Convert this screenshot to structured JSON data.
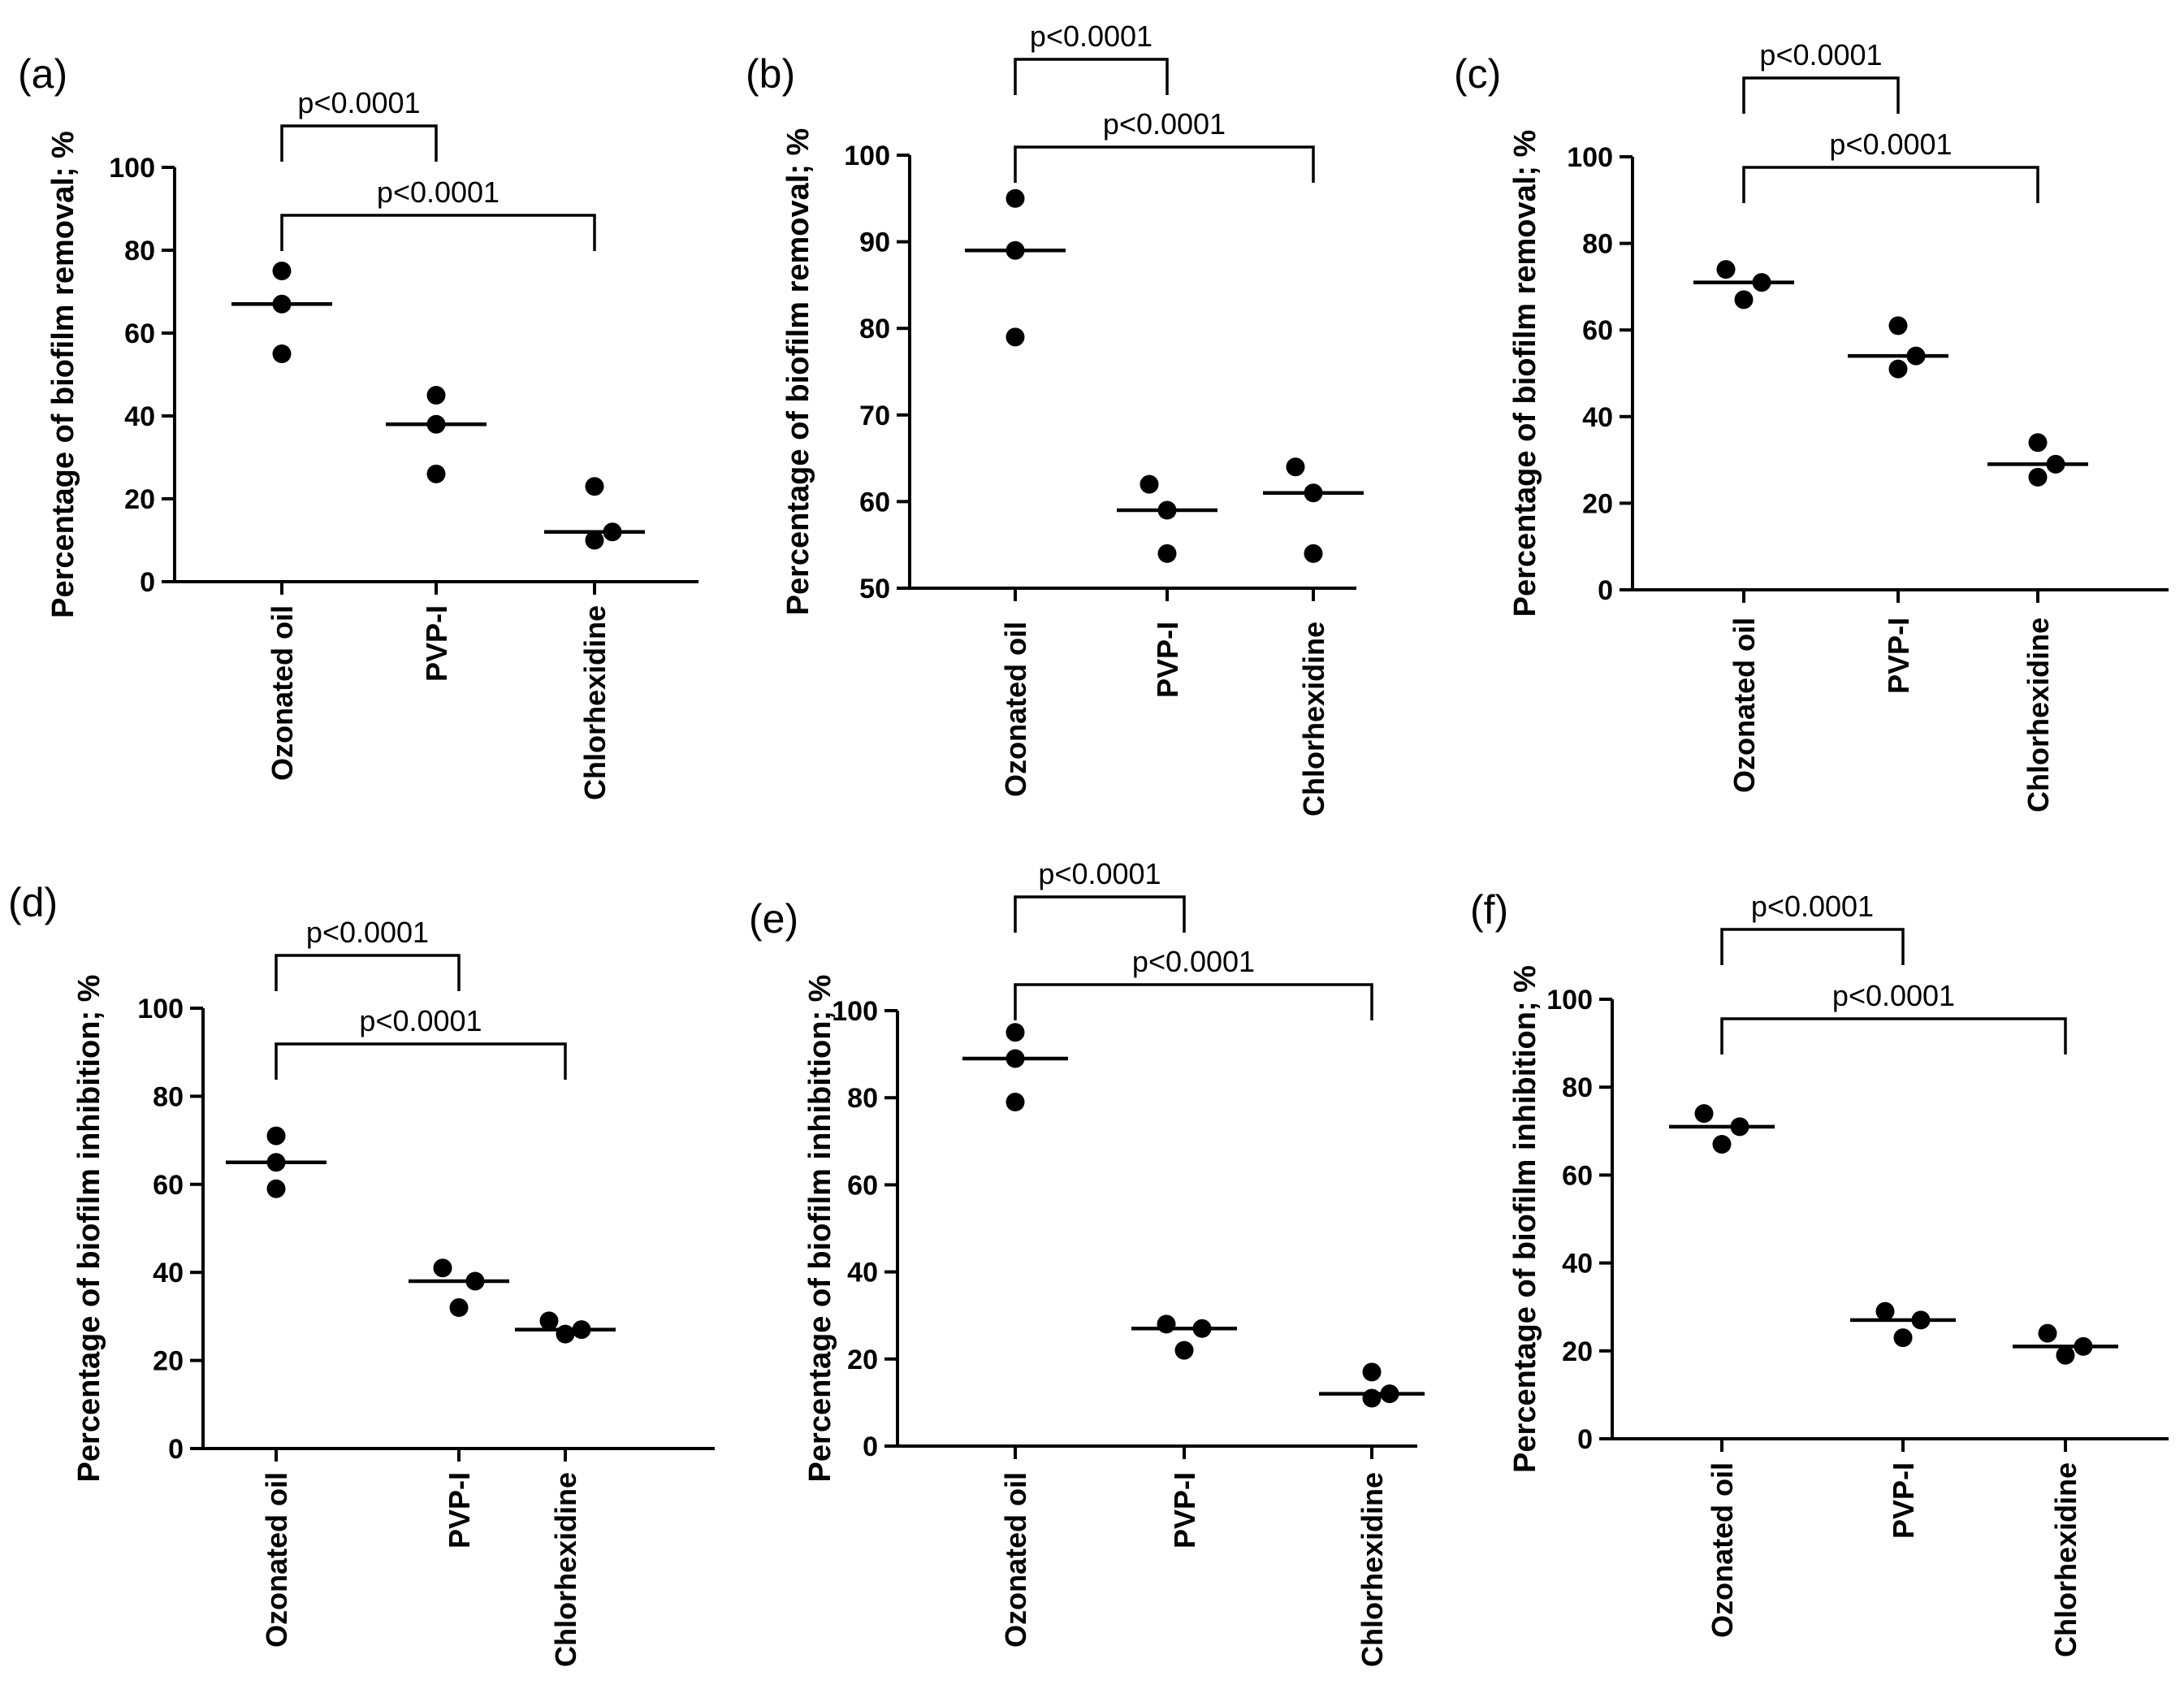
{
  "chart_data": [
    {
      "panel": "(a)",
      "type": "scatter",
      "ylabel": "Percentage of biofilm removal; %",
      "categories": [
        "Ozonated oil",
        "PVP-I",
        "Chlorhexidine"
      ],
      "ylim": [
        0,
        100
      ],
      "yticks": [
        0,
        20,
        40,
        60,
        80,
        100
      ],
      "points": [
        [
          75,
          67,
          55
        ],
        [
          45,
          38,
          26
        ],
        [
          23,
          10,
          12
        ]
      ],
      "medians": [
        67,
        38,
        12
      ],
      "comparisons": [
        {
          "from": "Ozonated oil",
          "to": "PVP-I",
          "label": "p<0.0001"
        },
        {
          "from": "Ozonated oil",
          "to": "Chlorhexidine",
          "label": "p<0.0001"
        }
      ]
    },
    {
      "panel": "(b)",
      "type": "scatter",
      "ylabel": "Percentage of biofilm removal; %",
      "categories": [
        "Ozonated oil",
        "PVP-I",
        "Chlorhexidine"
      ],
      "ylim": [
        50,
        100
      ],
      "yticks": [
        50,
        60,
        70,
        80,
        90,
        100
      ],
      "points": [
        [
          95,
          89,
          79
        ],
        [
          62,
          59,
          54
        ],
        [
          64,
          61,
          54
        ]
      ],
      "medians": [
        89,
        59,
        61
      ],
      "comparisons": [
        {
          "from": "Ozonated oil",
          "to": "PVP-I",
          "label": "p<0.0001"
        },
        {
          "from": "Ozonated oil",
          "to": "Chlorhexidine",
          "label": "p<0.0001"
        }
      ]
    },
    {
      "panel": "(c)",
      "type": "scatter",
      "ylabel": "Percentage of biofilm removal; %",
      "categories": [
        "Ozonated oil",
        "PVP-I",
        "Chlorhexidine"
      ],
      "ylim": [
        0,
        100
      ],
      "yticks": [
        0,
        20,
        40,
        60,
        80,
        100
      ],
      "points": [
        [
          74,
          67,
          71
        ],
        [
          61,
          51,
          54
        ],
        [
          34,
          26,
          29
        ]
      ],
      "medians": [
        71,
        54,
        29
      ],
      "comparisons": [
        {
          "from": "Ozonated oil",
          "to": "PVP-I",
          "label": "p<0.0001"
        },
        {
          "from": "Ozonated oil",
          "to": "Chlorhexidine",
          "label": "p<0.0001"
        }
      ]
    },
    {
      "panel": "(d)",
      "type": "scatter",
      "ylabel": "Percentage of biofilm inhibition; %",
      "categories": [
        "Ozonated oil",
        "PVP-I",
        "Chlorhexidine"
      ],
      "ylim": [
        0,
        100
      ],
      "yticks": [
        0,
        20,
        40,
        60,
        80,
        100
      ],
      "points": [
        [
          71,
          59,
          65
        ],
        [
          41,
          32,
          38
        ],
        [
          29,
          26,
          27
        ]
      ],
      "medians": [
        65,
        38,
        27
      ],
      "comparisons": [
        {
          "from": "Ozonated oil",
          "to": "PVP-I",
          "label": "p<0.0001"
        },
        {
          "from": "Ozonated oil",
          "to": "Chlorhexidine",
          "label": "p<0.0001"
        }
      ]
    },
    {
      "panel": "(e)",
      "type": "scatter",
      "ylabel": "Percentage of biofilm inhibition; %",
      "categories": [
        "Ozonated oil",
        "PVP-I",
        "Chlorhexidine"
      ],
      "ylim": [
        0,
        100
      ],
      "yticks": [
        0,
        20,
        40,
        60,
        80,
        100
      ],
      "points": [
        [
          95,
          79,
          89
        ],
        [
          28,
          22,
          27
        ],
        [
          17,
          11,
          12
        ]
      ],
      "medians": [
        89,
        27,
        12
      ],
      "comparisons": [
        {
          "from": "Ozonated oil",
          "to": "PVP-I",
          "label": "p<0.0001"
        },
        {
          "from": "Ozonated oil",
          "to": "Chlorhexidine",
          "label": "p<0.0001"
        }
      ]
    },
    {
      "panel": "(f)",
      "type": "scatter",
      "ylabel": "Percentage of biofilm inhibition; %",
      "categories": [
        "Ozonated oil",
        "PVP-I",
        "Chlorhexidine"
      ],
      "ylim": [
        0,
        100
      ],
      "yticks": [
        0,
        20,
        40,
        60,
        80,
        100
      ],
      "points": [
        [
          74,
          67,
          71
        ],
        [
          29,
          23,
          27
        ],
        [
          24,
          19,
          21
        ]
      ],
      "medians": [
        71,
        27,
        21
      ],
      "comparisons": [
        {
          "from": "Ozonated oil",
          "to": "PVP-I",
          "label": "p<0.0001"
        },
        {
          "from": "Ozonated oil",
          "to": "Chlorhexidine",
          "label": "p<0.0001"
        }
      ]
    }
  ]
}
